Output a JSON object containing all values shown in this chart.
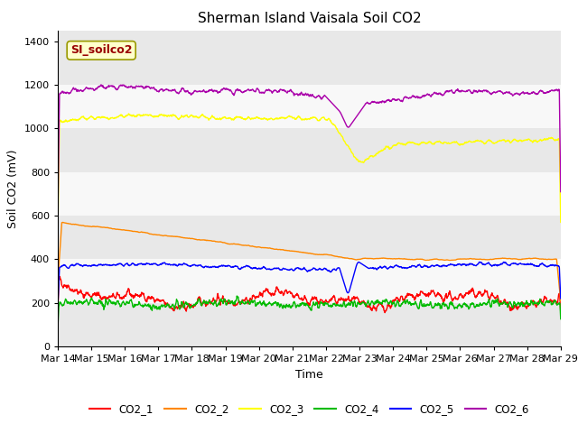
{
  "title": "Sherman Island Vaisala Soil CO2",
  "xlabel": "Time",
  "ylabel": "Soil CO2 (mV)",
  "ylim": [
    0,
    1450
  ],
  "yticks": [
    0,
    200,
    400,
    600,
    800,
    1000,
    1200,
    1400
  ],
  "date_labels": [
    "Mar 14",
    "Mar 15",
    "Mar 16",
    "Mar 17",
    "Mar 18",
    "Mar 19",
    "Mar 20",
    "Mar 21",
    "Mar 22",
    "Mar 23",
    "Mar 24",
    "Mar 25",
    "Mar 26",
    "Mar 27",
    "Mar 28",
    "Mar 29"
  ],
  "n_points": 1500,
  "legend_label": "SI_soilco2",
  "series_labels": [
    "CO2_1",
    "CO2_2",
    "CO2_3",
    "CO2_4",
    "CO2_5",
    "CO2_6"
  ],
  "series_colors": [
    "#ff0000",
    "#ff8800",
    "#ffff00",
    "#00bb00",
    "#0000ff",
    "#aa00aa"
  ],
  "band_colors": [
    "#e8e8e8",
    "#f8f8f8"
  ],
  "title_fontsize": 11,
  "axis_label_fontsize": 9,
  "tick_fontsize": 8,
  "line_width": 1.0
}
